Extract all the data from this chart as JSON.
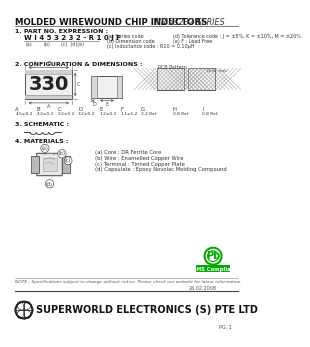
{
  "title_left": "MOLDED WIREWOUND CHIP INDUCTORS",
  "title_right": "WI453232 SERIES",
  "bg_color": "#ffffff",
  "section1_title": "1. PART NO. EXPRESSION :",
  "part_no": "W I 4 5 3 2 3 2 - R 1 0 J F",
  "part_labels_a": "(a)",
  "part_labels_b": "(b)",
  "part_labels_cde": "(c)  (d)(e)",
  "part_notes_left": [
    "(a) Series code",
    "(b) Dimension code",
    "(c) Inductance code : R10 = 0.10μH"
  ],
  "part_notes_right": [
    "(d) Tolerance code : J = ±5%, K = ±10%, M = ±20%",
    "(e) F : Lead Free"
  ],
  "section2_title": "2. CONFIGURATION & DIMENSIONS :",
  "inductor_value": "330",
  "dim_labels": [
    "4.5±0.2",
    "4.2±0.2",
    "3.2±0.2",
    "3.2±0.2",
    "1.2±0.2",
    "1.1±1.2",
    "2.2 Ref.",
    "0.8 Ref.",
    "0.8 Ref."
  ],
  "dim_letters": [
    "A",
    "B",
    "C",
    "D",
    "E",
    "F",
    "G",
    "H",
    "I"
  ],
  "unit_note": "Unit: mm",
  "pcb_pattern": "PCB Pattern",
  "section3_title": "3. SCHEMATIC :",
  "section4_title": "4. MATERIALS :",
  "materials": [
    "(a) Core : DR Ferrite Core",
    "(b) Wire : Enamelled Copper Wire",
    "(c) Terminal : Tinned Copper Plate",
    "(d) Capsulate : Epoxy Novolac Molding Compound"
  ],
  "note": "NOTE : Specifications subject to change without notice. Please check our website for latest information.",
  "company": "SUPERWORLD ELECTRONICS (S) PTE LTD",
  "page": "PG. 1",
  "date": "26.02.2008",
  "rohs_color": "#00aa00"
}
